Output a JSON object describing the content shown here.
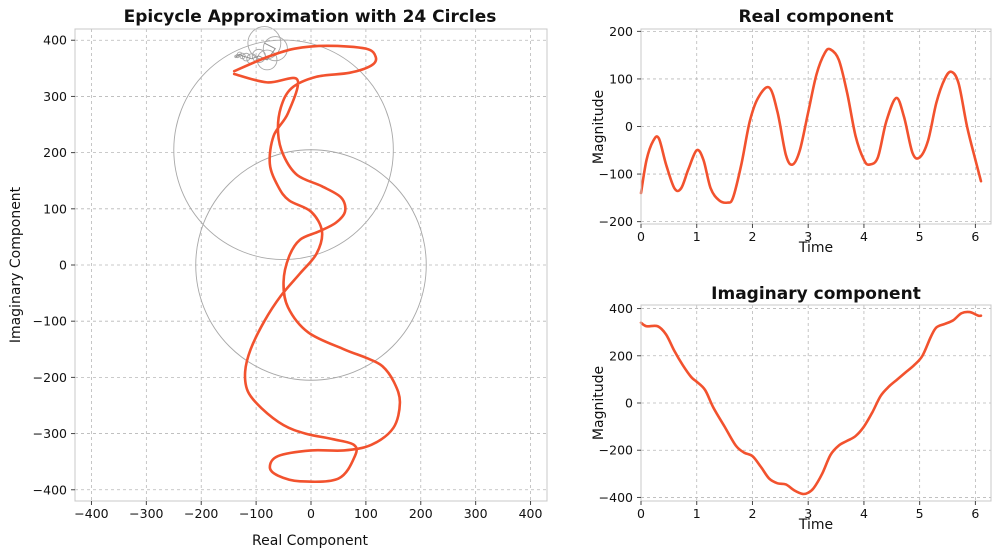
{
  "colors": {
    "curve": "#f2522e",
    "circles": "#a8a8a8",
    "grid": "#b8b8b8"
  },
  "chart_data": [
    {
      "id": "epicycle",
      "type": "line",
      "title": "Epicycle Approximation with 24 Circles",
      "xlabel": "Real Component",
      "ylabel": "Imaginary Component",
      "xlim": [
        -430,
        430
      ],
      "ylim": [
        -420,
        420
      ],
      "xticks": [
        -400,
        -300,
        -200,
        -100,
        0,
        100,
        200,
        300,
        400
      ],
      "yticks": [
        -400,
        -300,
        -200,
        -100,
        0,
        100,
        200,
        300,
        400
      ],
      "grid": true,
      "series": [
        {
          "x": [
            -140,
            -80,
            -30,
            30,
            100,
            118,
            110,
            70,
            10,
            -35,
            -55,
            -60,
            -50,
            -25,
            20,
            55,
            62,
            45,
            15,
            -20,
            -40,
            -50,
            -42,
            -5,
            60,
            100,
            130,
            152,
            162,
            150,
            110,
            60,
            0,
            -60,
            -75,
            -60,
            -20,
            50,
            80,
            78,
            40,
            -10,
            -50,
            -90,
            -115,
            -120,
            -110,
            -85,
            -55,
            -20,
            10,
            20,
            0,
            -40,
            -60,
            -75,
            -68,
            -42,
            -25,
            -80,
            -140
          ],
          "y": [
            345,
            370,
            385,
            390,
            385,
            370,
            355,
            342,
            335,
            315,
            280,
            235,
            195,
            160,
            140,
            120,
            95,
            75,
            60,
            45,
            15,
            -30,
            -75,
            -120,
            -150,
            -165,
            -180,
            -210,
            -245,
            -290,
            -320,
            -330,
            -330,
            -340,
            -360,
            -375,
            -385,
            -380,
            -340,
            -320,
            -310,
            -300,
            -285,
            -255,
            -225,
            -190,
            -150,
            -100,
            -55,
            -15,
            20,
            60,
            95,
            115,
            140,
            180,
            230,
            270,
            330,
            325,
            340
          ]
        }
      ],
      "circles": [
        {
          "x": 0,
          "y": 0,
          "r": 210
        },
        {
          "x": -50,
          "y": 205,
          "r": 200
        },
        {
          "x": -85,
          "y": 395,
          "r": 30
        },
        {
          "x": -65,
          "y": 385,
          "r": 22
        },
        {
          "x": -80,
          "y": 365,
          "r": 18
        },
        {
          "x": -95,
          "y": 372,
          "r": 12
        },
        {
          "x": -108,
          "y": 367,
          "r": 9
        },
        {
          "x": -118,
          "y": 370,
          "r": 7
        },
        {
          "x": -125,
          "y": 372,
          "r": 5
        },
        {
          "x": -130,
          "y": 375,
          "r": 4
        },
        {
          "x": -134,
          "y": 372,
          "r": 3
        },
        {
          "x": -137,
          "y": 371,
          "r": 2
        }
      ]
    },
    {
      "id": "real",
      "type": "line",
      "title": "Real component",
      "xlabel": "Time",
      "ylabel": "Magnitude",
      "xlim": [
        0,
        6.28
      ],
      "ylim": [
        -205,
        205
      ],
      "xticks": [
        0,
        1,
        2,
        3,
        4,
        5,
        6
      ],
      "yticks": [
        -200,
        -100,
        0,
        100,
        200
      ],
      "grid": true,
      "series": [
        {
          "x": [
            0,
            0.1,
            0.22,
            0.32,
            0.45,
            0.6,
            0.72,
            0.85,
            1.0,
            1.12,
            1.25,
            1.4,
            1.55,
            1.65,
            1.8,
            1.95,
            2.1,
            2.3,
            2.45,
            2.6,
            2.72,
            2.85,
            3.0,
            3.15,
            3.3,
            3.4,
            3.55,
            3.7,
            3.85,
            4.0,
            4.1,
            4.25,
            4.4,
            4.58,
            4.72,
            4.87,
            5.0,
            5.15,
            5.3,
            5.45,
            5.57,
            5.7,
            5.85,
            6.0,
            6.1
          ],
          "y": [
            -140,
            -70,
            -30,
            -25,
            -80,
            -130,
            -130,
            -90,
            -50,
            -70,
            -130,
            -155,
            -160,
            -150,
            -80,
            10,
            60,
            82,
            30,
            -60,
            -80,
            -50,
            30,
            110,
            155,
            162,
            140,
            70,
            -20,
            -70,
            -80,
            -65,
            10,
            60,
            20,
            -55,
            -65,
            -30,
            50,
            100,
            115,
            90,
            0,
            -70,
            -115
          ]
        }
      ]
    },
    {
      "id": "imag",
      "type": "line",
      "title": "Imaginary component",
      "xlabel": "Time",
      "ylabel": "Magnitude",
      "xlim": [
        0,
        6.28
      ],
      "ylim": [
        -415,
        415
      ],
      "xticks": [
        0,
        1,
        2,
        3,
        4,
        5,
        6
      ],
      "yticks": [
        -400,
        -200,
        0,
        200,
        400
      ],
      "grid": true,
      "series": [
        {
          "x": [
            0,
            0.1,
            0.3,
            0.45,
            0.6,
            0.75,
            0.9,
            1.0,
            1.15,
            1.3,
            1.5,
            1.7,
            1.85,
            2.0,
            2.15,
            2.3,
            2.45,
            2.6,
            2.75,
            2.9,
            3.0,
            3.1,
            3.25,
            3.4,
            3.55,
            3.7,
            3.85,
            4.0,
            4.15,
            4.3,
            4.45,
            4.6,
            4.75,
            4.9,
            5.05,
            5.2,
            5.3,
            5.45,
            5.6,
            5.75,
            5.9,
            6.05,
            6.1
          ],
          "y": [
            340,
            325,
            325,
            290,
            220,
            160,
            110,
            90,
            55,
            -20,
            -100,
            -180,
            -210,
            -225,
            -270,
            -320,
            -340,
            -345,
            -370,
            -385,
            -380,
            -360,
            -300,
            -220,
            -180,
            -160,
            -140,
            -100,
            -40,
            30,
            70,
            100,
            130,
            160,
            200,
            280,
            320,
            335,
            350,
            380,
            385,
            370,
            370
          ]
        }
      ]
    }
  ]
}
